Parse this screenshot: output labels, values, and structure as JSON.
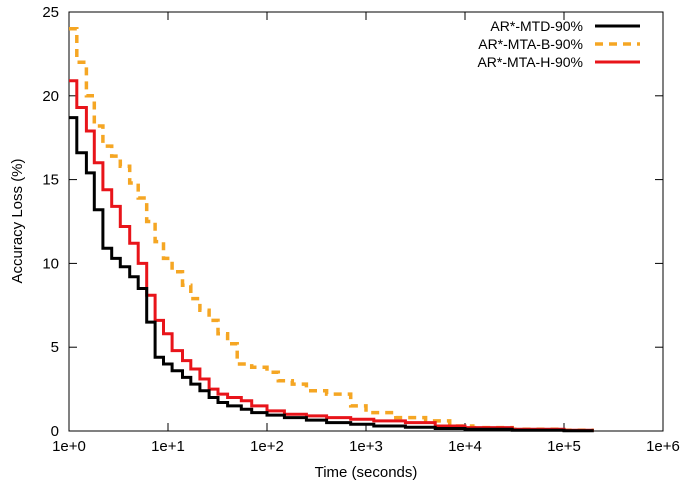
{
  "chart_data": {
    "type": "line",
    "title": "",
    "xlabel": "Time (seconds)",
    "ylabel": "Accuracy Loss (%)",
    "xscale": "log",
    "xlim": [
      1,
      1000000
    ],
    "ylim": [
      0,
      25
    ],
    "x_ticks": [
      1,
      10,
      100,
      1000,
      10000,
      100000,
      1000000
    ],
    "x_tick_labels": [
      "1e+0",
      "1e+1",
      "1e+2",
      "1e+3",
      "1e+4",
      "1e+5",
      "1e+6"
    ],
    "y_ticks": [
      0,
      5,
      10,
      15,
      20,
      25
    ],
    "y_tick_labels": [
      "0",
      "5",
      "10",
      "15",
      "20",
      "25"
    ],
    "grid": false,
    "legend_position": "top-right",
    "series": [
      {
        "name": "AR*-MTD-90%",
        "color": "#000000",
        "style": "solid",
        "step": true,
        "points": [
          [
            1,
            18.7
          ],
          [
            1.2,
            16.6
          ],
          [
            1.5,
            15.4
          ],
          [
            1.8,
            13.2
          ],
          [
            2.2,
            10.9
          ],
          [
            2.7,
            10.3
          ],
          [
            3.3,
            9.8
          ],
          [
            4.1,
            9.2
          ],
          [
            5.0,
            8.5
          ],
          [
            6.1,
            6.5
          ],
          [
            7.4,
            4.4
          ],
          [
            9.0,
            4.0
          ],
          [
            11,
            3.6
          ],
          [
            14,
            3.2
          ],
          [
            17,
            2.8
          ],
          [
            21,
            2.4
          ],
          [
            26,
            2.0
          ],
          [
            32,
            1.7
          ],
          [
            40,
            1.5
          ],
          [
            55,
            1.3
          ],
          [
            70,
            1.1
          ],
          [
            100,
            0.95
          ],
          [
            150,
            0.8
          ],
          [
            250,
            0.65
          ],
          [
            400,
            0.5
          ],
          [
            700,
            0.4
          ],
          [
            1200,
            0.3
          ],
          [
            2500,
            0.22
          ],
          [
            5000,
            0.15
          ],
          [
            10000,
            0.1
          ],
          [
            30000,
            0.05
          ],
          [
            100000,
            0.02
          ],
          [
            200000,
            0.02
          ]
        ]
      },
      {
        "name": "AR*-MTA-B-90%",
        "color": "#F5A623",
        "style": "dashed",
        "step": true,
        "points": [
          [
            1,
            24.0
          ],
          [
            1.2,
            22.0
          ],
          [
            1.5,
            20.0
          ],
          [
            1.8,
            18.2
          ],
          [
            2.2,
            17.0
          ],
          [
            2.7,
            16.4
          ],
          [
            3.3,
            15.8
          ],
          [
            4.1,
            14.8
          ],
          [
            5.0,
            13.9
          ],
          [
            6.1,
            12.5
          ],
          [
            7.4,
            11.3
          ],
          [
            9.0,
            10.3
          ],
          [
            11,
            9.5
          ],
          [
            14,
            8.7
          ],
          [
            17,
            7.9
          ],
          [
            21,
            7.2
          ],
          [
            26,
            6.6
          ],
          [
            32,
            5.8
          ],
          [
            40,
            5.2
          ],
          [
            50,
            4.0
          ],
          [
            70,
            3.8
          ],
          [
            100,
            3.5
          ],
          [
            130,
            3.0
          ],
          [
            180,
            2.8
          ],
          [
            250,
            2.4
          ],
          [
            400,
            2.2
          ],
          [
            700,
            1.5
          ],
          [
            1000,
            1.1
          ],
          [
            2000,
            0.8
          ],
          [
            4000,
            0.6
          ],
          [
            7000,
            0.3
          ],
          [
            12000,
            0.2
          ],
          [
            30000,
            0.1
          ],
          [
            100000,
            0.05
          ],
          [
            200000,
            0.05
          ]
        ]
      },
      {
        "name": "AR*-MTA-H-90%",
        "color": "#E8141A",
        "style": "solid",
        "step": true,
        "points": [
          [
            1,
            20.9
          ],
          [
            1.2,
            19.3
          ],
          [
            1.5,
            17.9
          ],
          [
            1.8,
            16.0
          ],
          [
            2.2,
            14.4
          ],
          [
            2.7,
            13.4
          ],
          [
            3.3,
            12.2
          ],
          [
            4.1,
            11.2
          ],
          [
            5.0,
            10.0
          ],
          [
            6.1,
            8.1
          ],
          [
            7.4,
            6.6
          ],
          [
            9.0,
            5.8
          ],
          [
            11,
            4.8
          ],
          [
            14,
            4.2
          ],
          [
            17,
            3.7
          ],
          [
            21,
            3.1
          ],
          [
            26,
            2.5
          ],
          [
            32,
            2.2
          ],
          [
            40,
            2.0
          ],
          [
            55,
            1.8
          ],
          [
            70,
            1.5
          ],
          [
            100,
            1.2
          ],
          [
            150,
            1.0
          ],
          [
            250,
            0.9
          ],
          [
            400,
            0.8
          ],
          [
            700,
            0.7
          ],
          [
            1200,
            0.6
          ],
          [
            2500,
            0.5
          ],
          [
            5000,
            0.3
          ],
          [
            10000,
            0.2
          ],
          [
            30000,
            0.1
          ],
          [
            100000,
            0.05
          ],
          [
            200000,
            0.05
          ]
        ]
      }
    ]
  }
}
